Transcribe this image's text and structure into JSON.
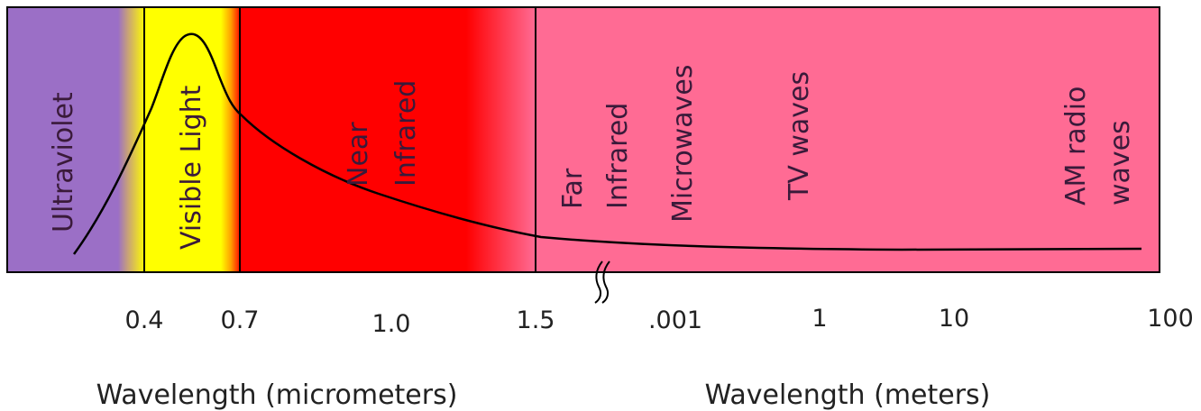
{
  "bands": [
    {
      "lines": [
        "Ultraviolet"
      ]
    },
    {
      "lines": [
        "Visible Light"
      ]
    },
    {
      "lines": [
        "Near",
        "Infrared"
      ]
    },
    {
      "lines": [
        "Far",
        "Infrared"
      ]
    },
    {
      "lines": [
        "Microwaves"
      ]
    },
    {
      "lines": [
        "TV waves"
      ]
    },
    {
      "lines": [
        "AM radio",
        "waves"
      ]
    }
  ],
  "ticks": [
    {
      "label": "0.4"
    },
    {
      "label": "0.7"
    },
    {
      "label": "1.0"
    },
    {
      "label": "1.5"
    },
    {
      "label": ".001"
    },
    {
      "label": "1"
    },
    {
      "label": "10"
    },
    {
      "label": "100"
    }
  ],
  "axis_titles": {
    "micrometers": "Wavelength (micrometers)",
    "meters": "Wavelength (meters)"
  },
  "colors": {
    "ultraviolet": "#9b6fc6",
    "visible": "#ffff00",
    "near_infrared": "#ff0000",
    "far_infrared": "#ff6b94",
    "border": "#000000",
    "curve": "#000000"
  }
}
